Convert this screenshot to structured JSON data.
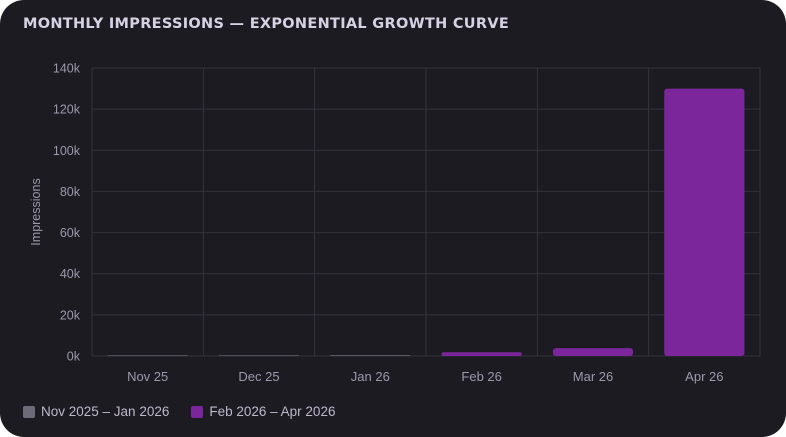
{
  "chart_data": {
    "type": "bar",
    "title": "MONTHLY IMPRESSIONS — EXPONENTIAL GROWTH CURVE",
    "ylabel": "Impressions",
    "xlabel": "",
    "categories": [
      "Nov 25",
      "Dec 25",
      "Jan 26",
      "Feb 26",
      "Mar 26",
      "Apr 26"
    ],
    "values": [
      40,
      120,
      350,
      1800,
      3800,
      130000
    ],
    "groups": [
      0,
      0,
      0,
      1,
      1,
      1
    ],
    "ylim": [
      0,
      140000
    ],
    "yticks": [
      0,
      20000,
      40000,
      60000,
      80000,
      100000,
      120000,
      140000
    ],
    "ytick_labels": [
      "0k",
      "20k",
      "40k",
      "60k",
      "80k",
      "100k",
      "120k",
      "140k"
    ],
    "grid": true,
    "legend_position": "bottom-left",
    "legend": [
      {
        "label": "Nov 2025 – Jan 2026",
        "color": "#6e6b78"
      },
      {
        "label": "Feb 2026 – Apr 2026",
        "color": "#7b279b"
      }
    ],
    "colors": {
      "background": "#1c1b21",
      "grid": "#34323c",
      "tick_text": "#9d98ab"
    }
  }
}
